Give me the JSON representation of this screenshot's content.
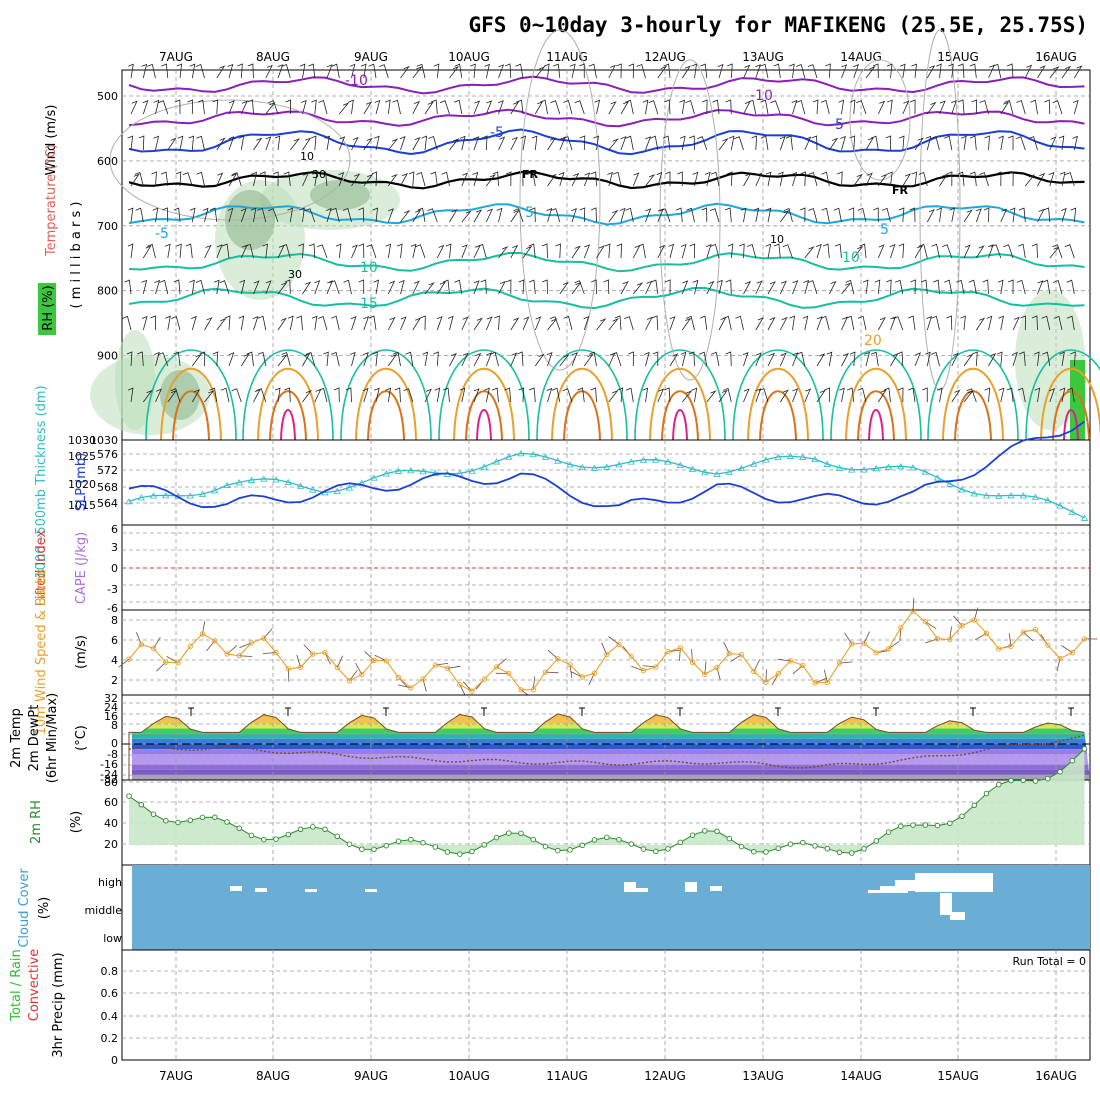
{
  "title": "GFS 0~10day 3-hourly for MAFIKENG (25.5E, 25.75S)",
  "dates": [
    "7AUG",
    "8AUG",
    "9AUG",
    "10AUG",
    "11AUG",
    "12AUG",
    "13AUG",
    "14AUG",
    "15AUG",
    "16AUG"
  ],
  "run_total": "Run Total = 0",
  "colors": {
    "grid": "#9a9a9a",
    "purple": "#8a1fb8",
    "blue": "#1b3fd6",
    "cyan": "#1ea7dc",
    "teal": "#17bfa0",
    "orange": "#e8a12a",
    "darkorange": "#d9731c",
    "magenta": "#e0208a",
    "rh_green": "#8fcf8f",
    "slp": "#1b3fd6",
    "thick": "#2fbcc8",
    "wind": "#e8a12a",
    "lifted": "#d83a3a",
    "cape": "#b06be0",
    "rh2m": "#2e8b2e",
    "cloud_bg": "#6aaed6"
  },
  "panels": {
    "upper": {
      "ylabel_wind": "Wind (m/s)",
      "ylabel_temp": "Temperature (°C)",
      "ylabel_rh": "RH (%)",
      "ylabel_units": "( m i l l i b a r s )",
      "pressure_ticks": [
        "500",
        "600",
        "700",
        "800",
        "900",
        "1030"
      ],
      "contour_labels": [
        "-10",
        "-10",
        "-5",
        "-5",
        "FR",
        "FR",
        "-5",
        "5",
        "5",
        "10",
        "10",
        "15",
        "20",
        "10",
        "30",
        "30",
        "10"
      ]
    },
    "slp_thickness": {
      "ylabel_thick": "1000~500mb Thickness (dm)",
      "ylabel_slp": "SLP (mb)",
      "left_ticks": [
        "576",
        "572",
        "568",
        "564"
      ],
      "right_ticks": [
        "1030",
        "1025",
        "1020",
        "1015"
      ]
    },
    "lifted_cape": {
      "ylabel_li": "Lifted Index",
      "ylabel_cape": "CAPE (J/kg)",
      "ticks": [
        "6",
        "3",
        "0",
        "-3",
        "-6"
      ]
    },
    "wind10m": {
      "ylabel": "10m Wind Speed & Barbs",
      "units": "(m/s)",
      "ticks": [
        "8",
        "6",
        "4",
        "2"
      ]
    },
    "temp2m": {
      "ylabel_a": "2m Temp",
      "ylabel_b": "2m DewPt",
      "ylabel_c": "(6hr Min/Max)",
      "units": "(°C)",
      "ticks": [
        "32",
        "24",
        "16",
        "8",
        "0",
        "-8",
        "-16",
        "-24",
        "-32"
      ]
    },
    "rh2m": {
      "ylabel": "2m RH",
      "units": "(%)",
      "ticks": [
        "80",
        "60",
        "40",
        "20"
      ]
    },
    "cloud": {
      "ylabel": "Cloud Cover",
      "units": "(%)",
      "levels": [
        "high",
        "middle",
        "low"
      ]
    },
    "precip": {
      "ylabel_a": "Total / Rain",
      "ylabel_b": "Convective",
      "ylabel_c": "3hr Precip (mm)",
      "ticks": [
        "0.8",
        "0.6",
        "0.4",
        "0.2",
        "0"
      ]
    }
  },
  "chart_data": [
    {
      "type": "line",
      "title": "GFS 0~10day 3-hourly for MAFIKENG (25.5E, 25.75S)",
      "xlabel": "",
      "ylabel": "SLP (mb)",
      "x": [
        "7AUG",
        "8AUG",
        "9AUG",
        "10AUG",
        "11AUG",
        "12AUG",
        "13AUG",
        "14AUG",
        "15AUG",
        "16AUG"
      ],
      "ylim": [
        1010,
        1030
      ],
      "series": [
        {
          "name": "SLP (mb)",
          "values": [
            1019,
            1015,
            1018,
            1021,
            1022,
            1014,
            1019,
            1016,
            1017,
            1028
          ]
        },
        {
          "name": "1000~500mb Thickness (dm)",
          "values": [
            564,
            569,
            568,
            571,
            574,
            573,
            572,
            574,
            571,
            566
          ]
        }
      ]
    },
    {
      "type": "line",
      "xlabel": "",
      "ylabel": "10m Wind Speed & Barbs (m/s)",
      "x": [
        "7AUG",
        "8AUG",
        "9AUG",
        "10AUG",
        "11AUG",
        "12AUG",
        "13AUG",
        "14AUG",
        "15AUG",
        "16AUG"
      ],
      "ylim": [
        0,
        9
      ],
      "series": [
        {
          "name": "10m Wind Speed",
          "values": [
            3.8,
            5.5,
            3.2,
            2.0,
            1.5,
            4.0,
            3.5,
            2.0,
            7.5,
            6.0
          ]
        }
      ]
    },
    {
      "type": "area",
      "xlabel": "",
      "ylabel": "2m RH (%)",
      "x": [
        "7AUG",
        "8AUG",
        "9AUG",
        "10AUG",
        "11AUG",
        "12AUG",
        "13AUG",
        "14AUG",
        "15AUG",
        "16AUG"
      ],
      "ylim": [
        0,
        80
      ],
      "series": [
        {
          "name": "2m RH",
          "values": [
            60,
            35,
            28,
            15,
            24,
            18,
            26,
            12,
            32,
            75
          ]
        }
      ]
    },
    {
      "type": "area",
      "xlabel": "",
      "ylabel": "2m Temp (°C)",
      "x": [
        "7AUG",
        "8AUG",
        "9AUG",
        "10AUG",
        "11AUG",
        "12AUG",
        "13AUG",
        "14AUG",
        "15AUG",
        "16AUG"
      ],
      "ylim": [
        -32,
        32
      ],
      "series": [
        {
          "name": "2m Temp",
          "values": [
            22,
            25,
            24,
            24,
            26,
            24,
            25,
            24,
            20,
            18
          ]
        },
        {
          "name": "2m DewPt",
          "values": [
            -4,
            -3,
            -8,
            -12,
            -14,
            -15,
            -14,
            -18,
            -12,
            -2
          ]
        }
      ]
    },
    {
      "type": "bar",
      "xlabel": "",
      "ylabel": "3hr Precip (mm)",
      "categories": [
        "7AUG",
        "8AUG",
        "9AUG",
        "10AUG",
        "11AUG",
        "12AUG",
        "13AUG",
        "14AUG",
        "15AUG",
        "16AUG"
      ],
      "values": [
        0,
        0,
        0,
        0,
        0,
        0,
        0,
        0,
        0,
        0
      ],
      "ylim": [
        0,
        1
      ]
    }
  ]
}
